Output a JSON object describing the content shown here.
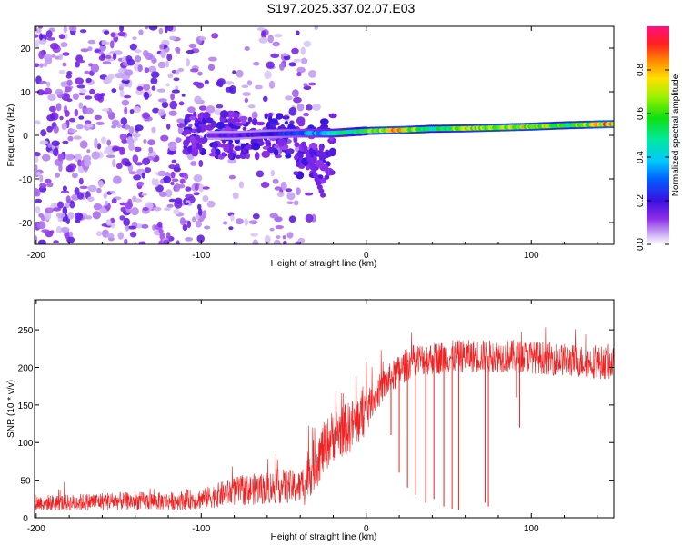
{
  "title": "S197.2025.337.02.07.E03",
  "chart_data": [
    {
      "type": "heatmap",
      "name": "spectrogram",
      "xlabel": "Height of straight line (km)",
      "ylabel": "Frequency (Hz)",
      "xlim": [
        -201,
        150
      ],
      "ylim": [
        -25,
        25
      ],
      "xticks": [
        -200,
        -100,
        0,
        100
      ],
      "xtick_labels": [
        "-200",
        "-100",
        "0",
        "100"
      ],
      "yticks": [
        20,
        10,
        0,
        -10,
        -20
      ],
      "ytick_labels": [
        "20",
        "10",
        "0",
        "-10",
        "-20"
      ],
      "colorbar": {
        "label": "Normalized spectral amplitude",
        "range": [
          0,
          1
        ],
        "ticks": [
          0.0,
          0.2,
          0.4,
          0.6,
          0.8
        ],
        "tick_labels": [
          "0.0",
          "0.2",
          "0.4",
          "0.6",
          "0.8"
        ]
      },
      "ridge": {
        "description_values": "dominant frequency vs height",
        "x": [
          -100,
          -80,
          -60,
          -40,
          -20,
          0,
          20,
          40,
          60,
          80,
          100,
          120,
          150
        ],
        "y": [
          0,
          0,
          0.3,
          0.5,
          0.5,
          1,
          1.2,
          1.5,
          1.6,
          1.8,
          2,
          2.3,
          2.6
        ],
        "amplitude": [
          0.15,
          0.18,
          0.2,
          0.3,
          0.45,
          0.6,
          0.85,
          0.55,
          0.7,
          0.75,
          0.75,
          0.6,
          0.9
        ]
      }
    },
    {
      "type": "line",
      "name": "snr",
      "xlabel": "Height of straight line (km)",
      "ylabel": "SNR (10 * v/v)",
      "xlim": [
        -201,
        150
      ],
      "ylim": [
        0,
        290
      ],
      "xticks": [
        -200,
        -100,
        0,
        100
      ],
      "xtick_labels": [
        "-200",
        "-100",
        "0",
        "100"
      ],
      "yticks": [
        0,
        50,
        100,
        150,
        200,
        250
      ],
      "ytick_labels": [
        "0",
        "50",
        "100",
        "150",
        "200",
        "250"
      ],
      "series": [
        {
          "name": "SNR",
          "color": "#ee2222",
          "x": [
            -201,
            -180,
            -160,
            -140,
            -120,
            -100,
            -80,
            -60,
            -50,
            -40,
            -35,
            -30,
            -25,
            -20,
            -15,
            -10,
            -5,
            0,
            5,
            10,
            15,
            20,
            25,
            30,
            40,
            50,
            60,
            70,
            80,
            90,
            100,
            110,
            120,
            130,
            140,
            150
          ],
          "y": [
            20,
            20,
            22,
            22,
            22,
            25,
            35,
            40,
            42,
            40,
            60,
            75,
            95,
            110,
            115,
            120,
            130,
            145,
            160,
            175,
            185,
            195,
            205,
            210,
            212,
            214,
            215,
            215,
            215,
            215,
            214,
            212,
            210,
            208,
            207,
            205
          ]
        }
      ],
      "dropouts": [
        {
          "x": 15,
          "y": 110
        },
        {
          "x": 20,
          "y": 60
        },
        {
          "x": 25,
          "y": 40
        },
        {
          "x": 30,
          "y": 30
        },
        {
          "x": 36,
          "y": 20
        },
        {
          "x": 41,
          "y": 25
        },
        {
          "x": 47,
          "y": 15
        },
        {
          "x": 52,
          "y": 12
        },
        {
          "x": 56,
          "y": 10
        },
        {
          "x": 72,
          "y": 20
        },
        {
          "x": 74,
          "y": 15
        },
        {
          "x": 91,
          "y": 160
        },
        {
          "x": 93,
          "y": 120
        }
      ]
    }
  ]
}
